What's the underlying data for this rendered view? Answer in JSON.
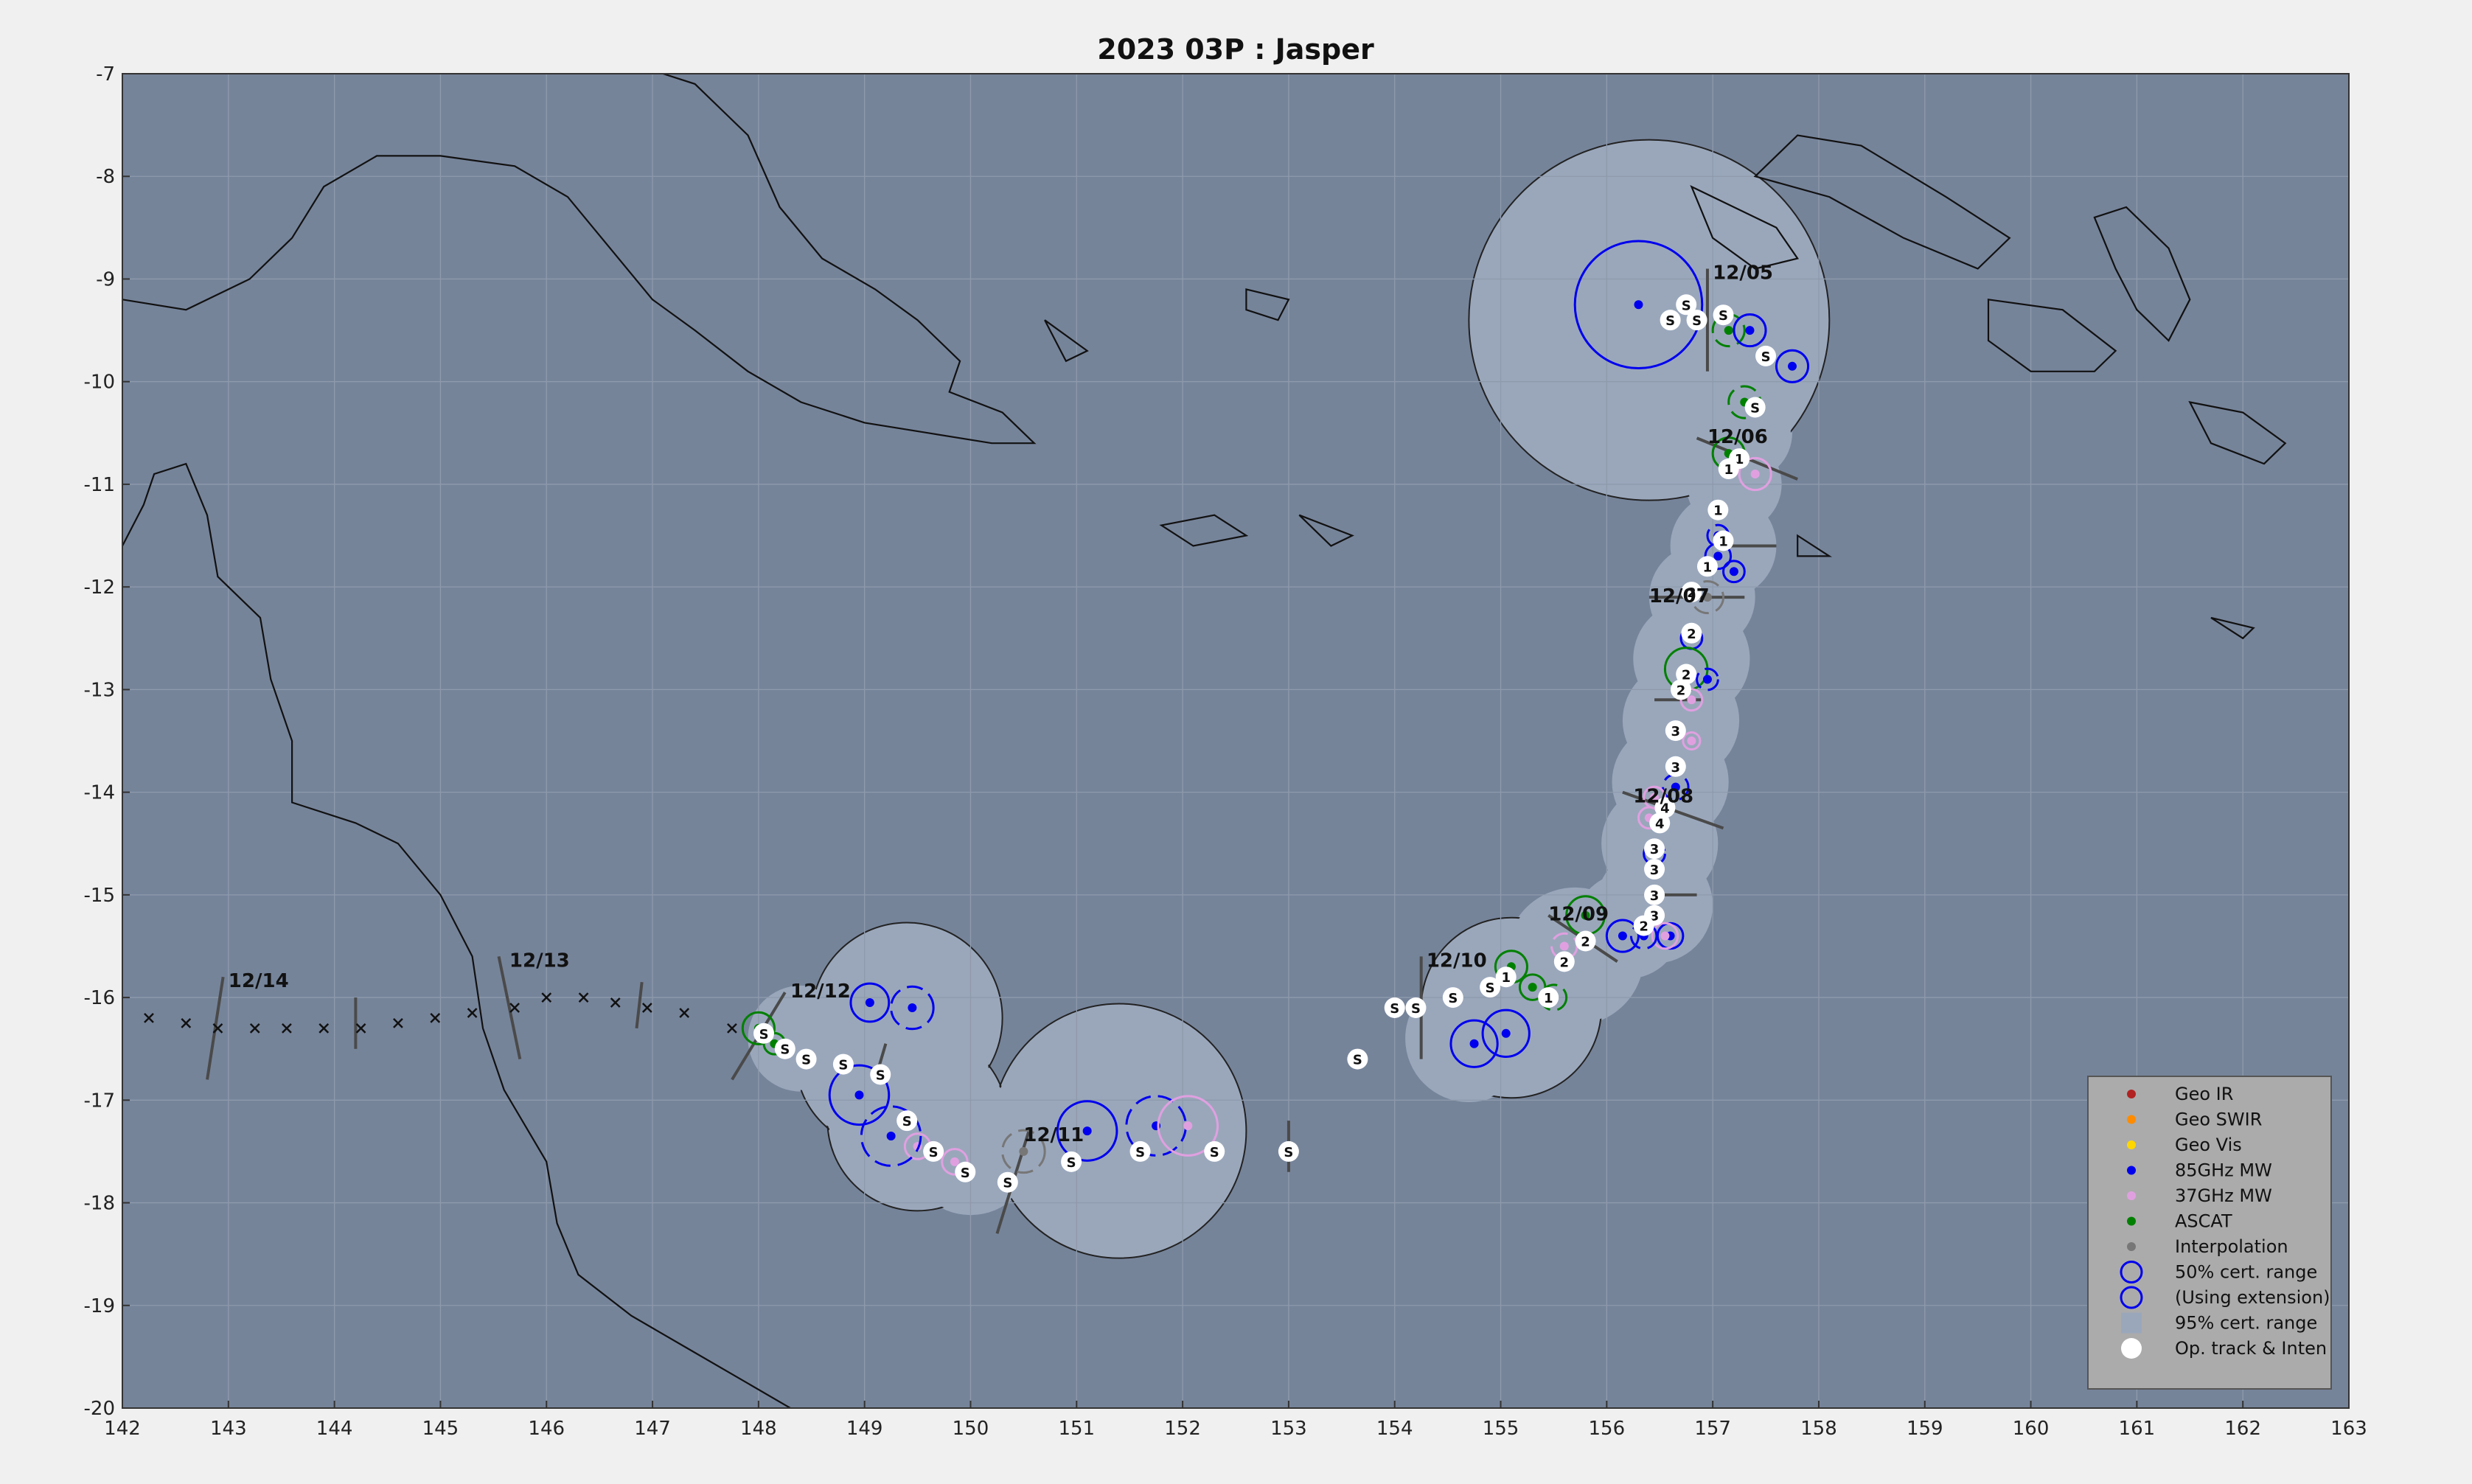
{
  "chart_data": {
    "type": "map",
    "title": "2023  03P :  Jasper",
    "xlim": [
      142,
      163
    ],
    "ylim": [
      -20,
      -7
    ],
    "x_ticks": [
      142,
      143,
      144,
      145,
      146,
      147,
      148,
      149,
      150,
      151,
      152,
      153,
      154,
      155,
      156,
      157,
      158,
      159,
      160,
      161,
      162,
      163
    ],
    "y_ticks": [
      -7,
      -8,
      -9,
      -10,
      -11,
      -12,
      -13,
      -14,
      -15,
      -16,
      -17,
      -18,
      -19,
      -20
    ],
    "grid": true,
    "legend_position": "bottom-right",
    "colors": {
      "ocean": "#76849a",
      "uncertainty": "#9aa7bb",
      "geo_ir": "#b22222",
      "geo_swir": "#ff8c00",
      "geo_vis": "#ffd700",
      "mw85": "#0000ee",
      "mw37": "#e0a0e0",
      "ascat": "#008000",
      "interp": "#777777"
    },
    "legend": [
      {
        "label": "Geo IR",
        "kind": "dot",
        "color": "#b22222"
      },
      {
        "label": "Geo SWIR",
        "kind": "dot",
        "color": "#ff8c00"
      },
      {
        "label": "Geo Vis",
        "kind": "dot",
        "color": "#ffd700"
      },
      {
        "label": "85GHz MW",
        "kind": "dot",
        "color": "#0000ee"
      },
      {
        "label": "37GHz MW",
        "kind": "dot",
        "color": "#e0a0e0"
      },
      {
        "label": "ASCAT",
        "kind": "dot",
        "color": "#008000"
      },
      {
        "label": "Interpolation",
        "kind": "dot",
        "color": "#777777"
      },
      {
        "label": "50% cert. range",
        "kind": "circle",
        "color": "#0000ee"
      },
      {
        "label": "(Using extension)",
        "kind": "circle",
        "color": "#0000ee"
      },
      {
        "label": "95% cert. range",
        "kind": "square",
        "color": "#9aa7bb"
      },
      {
        "label": "Op. track & Inten",
        "kind": "white",
        "color": "#ffffff"
      }
    ],
    "date_labels": [
      {
        "text": "12/05",
        "lon": 157.0,
        "lat": -9.0
      },
      {
        "text": "12/06",
        "lon": 156.95,
        "lat": -10.6
      },
      {
        "text": "12/07",
        "lon": 156.4,
        "lat": -12.15
      },
      {
        "text": "12/08",
        "lon": 156.25,
        "lat": -14.1
      },
      {
        "text": "12/09",
        "lon": 155.45,
        "lat": -15.25
      },
      {
        "text": "12/10",
        "lon": 154.3,
        "lat": -15.7
      },
      {
        "text": "12/11",
        "lon": 150.5,
        "lat": -17.4
      },
      {
        "text": "12/12",
        "lon": 148.3,
        "lat": -16.0
      },
      {
        "text": "12/13",
        "lon": 145.65,
        "lat": -15.7
      },
      {
        "text": "12/14",
        "lon": 143.0,
        "lat": -15.9
      }
    ],
    "op_track": [
      {
        "lon": 156.6,
        "lat": -9.4,
        "label": "S"
      },
      {
        "lon": 156.75,
        "lat": -9.25,
        "label": "S"
      },
      {
        "lon": 156.85,
        "lat": -9.4,
        "label": "S"
      },
      {
        "lon": 157.1,
        "lat": -9.35,
        "label": "S"
      },
      {
        "lon": 157.5,
        "lat": -9.75,
        "label": "S"
      },
      {
        "lon": 157.4,
        "lat": -10.25,
        "label": "S"
      },
      {
        "lon": 157.25,
        "lat": -10.75,
        "label": "1"
      },
      {
        "lon": 157.15,
        "lat": -10.85,
        "label": "1"
      },
      {
        "lon": 157.05,
        "lat": -11.25,
        "label": "1"
      },
      {
        "lon": 157.1,
        "lat": -11.55,
        "label": "1"
      },
      {
        "lon": 156.95,
        "lat": -11.8,
        "label": "1"
      },
      {
        "lon": 156.8,
        "lat": -12.05,
        "label": "2"
      },
      {
        "lon": 156.8,
        "lat": -12.45,
        "label": "2"
      },
      {
        "lon": 156.75,
        "lat": -12.85,
        "label": "2"
      },
      {
        "lon": 156.7,
        "lat": -13.0,
        "label": "2"
      },
      {
        "lon": 156.65,
        "lat": -13.4,
        "label": "3"
      },
      {
        "lon": 156.65,
        "lat": -13.75,
        "label": "3"
      },
      {
        "lon": 156.55,
        "lat": -14.15,
        "label": "4"
      },
      {
        "lon": 156.5,
        "lat": -14.3,
        "label": "4"
      },
      {
        "lon": 156.45,
        "lat": -14.55,
        "label": "3"
      },
      {
        "lon": 156.45,
        "lat": -14.75,
        "label": "3"
      },
      {
        "lon": 156.45,
        "lat": -15.0,
        "label": "3"
      },
      {
        "lon": 156.45,
        "lat": -15.2,
        "label": "3"
      },
      {
        "lon": 156.35,
        "lat": -15.3,
        "label": "2"
      },
      {
        "lon": 155.8,
        "lat": -15.45,
        "label": "2"
      },
      {
        "lon": 155.6,
        "lat": -15.65,
        "label": "2"
      },
      {
        "lon": 155.45,
        "lat": -16.0,
        "label": "1"
      },
      {
        "lon": 155.05,
        "lat": -15.8,
        "label": "1"
      },
      {
        "lon": 154.9,
        "lat": -15.9,
        "label": "S"
      },
      {
        "lon": 154.55,
        "lat": -16.0,
        "label": "S"
      },
      {
        "lon": 154.2,
        "lat": -16.1,
        "label": "S"
      },
      {
        "lon": 154.0,
        "lat": -16.1,
        "label": "S"
      },
      {
        "lon": 153.65,
        "lat": -16.6,
        "label": "S"
      },
      {
        "lon": 153.0,
        "lat": -17.5,
        "label": "S"
      },
      {
        "lon": 152.3,
        "lat": -17.5,
        "label": "S"
      },
      {
        "lon": 151.6,
        "lat": -17.5,
        "label": "S"
      },
      {
        "lon": 150.95,
        "lat": -17.6,
        "label": "S"
      },
      {
        "lon": 150.35,
        "lat": -17.8,
        "label": "S"
      },
      {
        "lon": 149.95,
        "lat": -17.7,
        "label": "S"
      },
      {
        "lon": 149.65,
        "lat": -17.5,
        "label": "S"
      },
      {
        "lon": 149.4,
        "lat": -17.2,
        "label": "S"
      },
      {
        "lon": 149.15,
        "lat": -16.75,
        "label": "S"
      },
      {
        "lon": 148.8,
        "lat": -16.65,
        "label": "S"
      },
      {
        "lon": 148.45,
        "lat": -16.6,
        "label": "S"
      },
      {
        "lon": 148.25,
        "lat": -16.5,
        "label": "S"
      },
      {
        "lon": 148.05,
        "lat": -16.35,
        "label": "S"
      }
    ],
    "fixes": [
      {
        "lon": 156.3,
        "lat": -9.25,
        "type": "mw85",
        "r": 0.6
      },
      {
        "lon": 157.15,
        "lat": -9.5,
        "type": "ascat",
        "r": 0.15
      },
      {
        "lon": 157.35,
        "lat": -9.5,
        "type": "mw85",
        "r": 0.15
      },
      {
        "lon": 157.75,
        "lat": -9.85,
        "type": "mw85",
        "r": 0.15
      },
      {
        "lon": 157.3,
        "lat": -10.2,
        "type": "ascat",
        "r": 0.15
      },
      {
        "lon": 157.15,
        "lat": -10.7,
        "type": "ascat",
        "r": 0.15
      },
      {
        "lon": 157.4,
        "lat": -10.9,
        "type": "mw37",
        "r": 0.15
      },
      {
        "lon": 157.05,
        "lat": -11.5,
        "type": "mw85",
        "r": 0.1
      },
      {
        "lon": 157.05,
        "lat": -11.7,
        "type": "mw85",
        "r": 0.12
      },
      {
        "lon": 157.2,
        "lat": -11.85,
        "type": "mw85",
        "r": 0.1
      },
      {
        "lon": 156.95,
        "lat": -12.1,
        "type": "interp",
        "r": 0.15
      },
      {
        "lon": 156.8,
        "lat": -12.5,
        "type": "mw85",
        "r": 0.1
      },
      {
        "lon": 156.75,
        "lat": -12.8,
        "type": "ascat",
        "r": 0.2
      },
      {
        "lon": 156.95,
        "lat": -12.9,
        "type": "mw85",
        "r": 0.1
      },
      {
        "lon": 156.8,
        "lat": -13.1,
        "type": "mw37",
        "r": 0.1
      },
      {
        "lon": 156.8,
        "lat": -13.5,
        "type": "mw37",
        "r": 0.08
      },
      {
        "lon": 156.65,
        "lat": -13.95,
        "type": "mw85",
        "r": 0.12
      },
      {
        "lon": 156.45,
        "lat": -14.05,
        "type": "mw37",
        "r": 0.1
      },
      {
        "lon": 156.4,
        "lat": -14.25,
        "type": "mw37",
        "r": 0.1
      },
      {
        "lon": 156.45,
        "lat": -14.6,
        "type": "mw85",
        "r": 0.1
      },
      {
        "lon": 156.6,
        "lat": -15.4,
        "type": "mw85",
        "r": 0.12
      },
      {
        "lon": 156.55,
        "lat": -15.4,
        "type": "mw37",
        "r": 0.12
      },
      {
        "lon": 156.35,
        "lat": -15.4,
        "type": "mw85",
        "r": 0.12
      },
      {
        "lon": 156.15,
        "lat": -15.4,
        "type": "mw85",
        "r": 0.15
      },
      {
        "lon": 155.8,
        "lat": -15.2,
        "type": "ascat",
        "r": 0.18
      },
      {
        "lon": 155.6,
        "lat": -15.5,
        "type": "mw37",
        "r": 0.12
      },
      {
        "lon": 155.1,
        "lat": -15.7,
        "type": "ascat",
        "r": 0.15
      },
      {
        "lon": 155.3,
        "lat": -15.9,
        "type": "ascat",
        "r": 0.12
      },
      {
        "lon": 155.5,
        "lat": -16.0,
        "type": "ascat",
        "r": 0.12
      },
      {
        "lon": 155.05,
        "lat": -16.35,
        "type": "mw85",
        "r": 0.22
      },
      {
        "lon": 154.75,
        "lat": -16.45,
        "type": "mw85",
        "r": 0.22
      },
      {
        "lon": 151.75,
        "lat": -17.25,
        "type": "mw85",
        "r": 0.28
      },
      {
        "lon": 152.05,
        "lat": -17.25,
        "type": "mw37",
        "r": 0.28
      },
      {
        "lon": 151.1,
        "lat": -17.3,
        "type": "mw85",
        "r": 0.28
      },
      {
        "lon": 150.5,
        "lat": -17.5,
        "type": "interp",
        "r": 0.2
      },
      {
        "lon": 149.85,
        "lat": -17.6,
        "type": "mw37",
        "r": 0.12
      },
      {
        "lon": 149.5,
        "lat": -17.45,
        "type": "mw37",
        "r": 0.12
      },
      {
        "lon": 149.25,
        "lat": -17.35,
        "type": "mw85",
        "r": 0.28
      },
      {
        "lon": 148.95,
        "lat": -16.95,
        "type": "mw85",
        "r": 0.28
      },
      {
        "lon": 149.05,
        "lat": -16.05,
        "type": "mw85",
        "r": 0.18
      },
      {
        "lon": 149.45,
        "lat": -16.1,
        "type": "mw85",
        "r": 0.2
      },
      {
        "lon": 148.15,
        "lat": -16.45,
        "type": "ascat",
        "r": 0.1
      },
      {
        "lon": 148.0,
        "lat": -16.3,
        "type": "ascat",
        "r": 0.15
      }
    ],
    "extrapolated_track": [
      {
        "lon": 147.75,
        "lat": -16.3
      },
      {
        "lon": 147.3,
        "lat": -16.15
      },
      {
        "lon": 146.95,
        "lat": -16.1
      },
      {
        "lon": 146.65,
        "lat": -16.05
      },
      {
        "lon": 146.35,
        "lat": -16.0
      },
      {
        "lon": 146.0,
        "lat": -16.0
      },
      {
        "lon": 145.7,
        "lat": -16.1
      },
      {
        "lon": 145.3,
        "lat": -16.15
      },
      {
        "lon": 144.95,
        "lat": -16.2
      },
      {
        "lon": 144.6,
        "lat": -16.25
      },
      {
        "lon": 144.25,
        "lat": -16.3
      },
      {
        "lon": 143.9,
        "lat": -16.3
      },
      {
        "lon": 143.55,
        "lat": -16.3
      },
      {
        "lon": 143.25,
        "lat": -16.3
      },
      {
        "lon": 142.9,
        "lat": -16.3
      },
      {
        "lon": 142.6,
        "lat": -16.25
      },
      {
        "lon": 142.25,
        "lat": -16.2
      }
    ]
  }
}
